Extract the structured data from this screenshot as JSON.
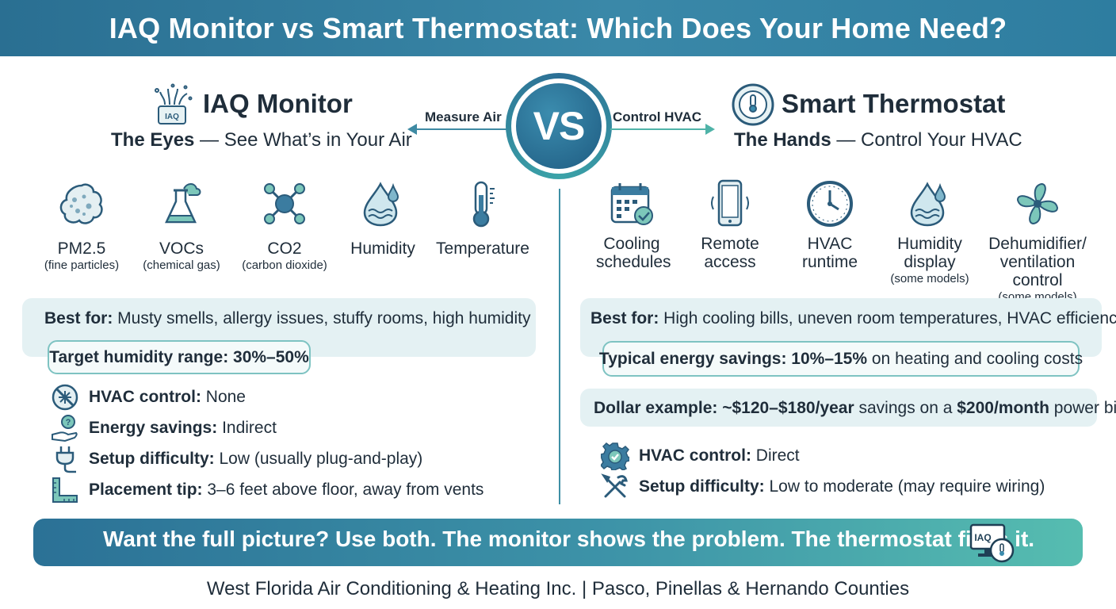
{
  "header": {
    "title": "IAQ Monitor vs Smart Thermostat: Which Does Your Home Need?"
  },
  "vs": {
    "badge": "VS",
    "left_arrow_label": "Measure Air",
    "right_arrow_label": "Control HVAC"
  },
  "left": {
    "icon_label": "IAQ",
    "title": "IAQ Monitor",
    "subtitle_bold": "The Eyes",
    "subtitle_rest": " — See What’s in Your Air",
    "features": [
      {
        "icon": "particles-icon",
        "name": "PM2.5",
        "note": "(fine particles)"
      },
      {
        "icon": "flask-icon",
        "name": "VOCs",
        "note": "(chemical gas)"
      },
      {
        "icon": "molecule-icon",
        "name": "CO2",
        "note": "(carbon dioxide)"
      },
      {
        "icon": "water-drop-icon",
        "name": "Humidity",
        "note": ""
      },
      {
        "icon": "thermometer-icon",
        "name": "Temperature",
        "note": ""
      }
    ],
    "best_for_label": "Best for:",
    "best_for_text": " Musty smells, allergy issues, stuffy rooms, high humidity",
    "target_label": "Target humidity range: 30%–50%",
    "specs": [
      {
        "icon": "no-hvac-icon",
        "label": "HVAC control:",
        "value": " None"
      },
      {
        "icon": "hand-savings-icon",
        "label": "Energy savings:",
        "value": " Indirect"
      },
      {
        "icon": "plug-icon",
        "label": "Setup difficulty:",
        "value": " Low (usually plug-and-play)"
      },
      {
        "icon": "ruler-icon",
        "label": "Placement tip:",
        "value": " 3–6 feet above floor, away from vents"
      }
    ]
  },
  "right": {
    "title": "Smart Thermostat",
    "subtitle_bold": "The Hands",
    "subtitle_rest": " — Control Your HVAC",
    "features": [
      {
        "icon": "calendar-icon",
        "name": "Cooling schedules",
        "note": ""
      },
      {
        "icon": "phone-icon",
        "name": "Remote access",
        "note": ""
      },
      {
        "icon": "clock-icon",
        "name": "HVAC runtime",
        "note": ""
      },
      {
        "icon": "water-drop-icon",
        "name": "Humidity display",
        "note": "(some models)"
      },
      {
        "icon": "fan-icon",
        "name": "Dehumidifier/ ventilation control",
        "note": "(some models)"
      }
    ],
    "best_for_label": "Best for:",
    "best_for_text": " High cooling bills, uneven room temperatures, HVAC efficiency",
    "savings_label": "Typical energy savings: 10%–15%",
    "savings_rest": " on heating and cooling costs",
    "dollar_label": "Dollar example: ~$120–$180/year",
    "dollar_mid": " savings on a ",
    "dollar_bold2": "$200/month",
    "dollar_rest": " power bill",
    "specs": [
      {
        "icon": "gear-check-icon",
        "label": "HVAC control:",
        "value": " Direct"
      },
      {
        "icon": "tools-icon",
        "label": "Setup difficulty:",
        "value": " Low to moderate (may require wiring)"
      }
    ]
  },
  "cta": {
    "text": "Want the full picture? Use both. The monitor shows the problem. The thermostat fixes it.",
    "icon_label": "IAQ"
  },
  "footer": {
    "text": "West Florida Air Conditioning & Heating Inc. | Pasco, Pinellas & Hernando Counties"
  },
  "colors": {
    "banner": "#2e7da0",
    "accent_teal": "#4fb3a8",
    "panel_bg": "#e4f1f3",
    "text": "#1f2d3a"
  }
}
